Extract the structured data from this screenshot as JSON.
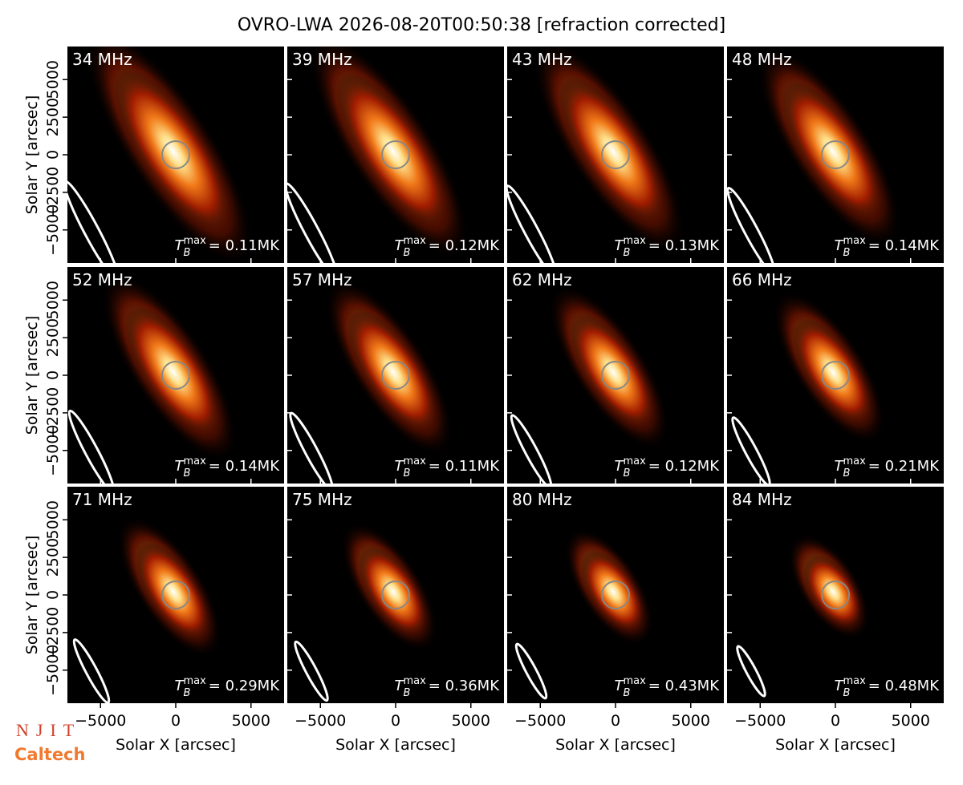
{
  "figure_title": "OVRO-LWA 2026-08-20T00:50:38 [refraction corrected]",
  "axes": {
    "xlabel": "Solar X [arcsec]",
    "ylabel": "Solar Y [arcsec]",
    "xlim": [
      -7200,
      7200
    ],
    "ylim": [
      -7200,
      7200
    ],
    "xticks": [
      {
        "value": -5000,
        "label": "−5000"
      },
      0,
      5000
    ],
    "yticks": [
      {
        "value": -5000,
        "label": "−5000"
      },
      {
        "value": -2500,
        "label": "−2500"
      },
      0,
      2500,
      5000
    ]
  },
  "annotation": {
    "symbol": "T",
    "sub": "B",
    "sup": "max"
  },
  "logos": [
    "NJIT",
    "Caltech"
  ],
  "chart_data": [
    {
      "type": "image",
      "title": "34 MHz",
      "annotation_text": "= 0.11MK"
    },
    {
      "type": "image",
      "title": "39 MHz",
      "annotation_text": "= 0.12MK"
    },
    {
      "type": "image",
      "title": "43 MHz",
      "annotation_text": "= 0.13MK"
    },
    {
      "type": "image",
      "title": "48 MHz",
      "annotation_text": "= 0.14MK"
    },
    {
      "type": "image",
      "title": "52 MHz",
      "annotation_text": "= 0.14MK"
    },
    {
      "type": "image",
      "title": "57 MHz",
      "annotation_text": "= 0.11MK"
    },
    {
      "type": "image",
      "title": "62 MHz",
      "annotation_text": "= 0.12MK"
    },
    {
      "type": "image",
      "title": "66 MHz",
      "annotation_text": "= 0.21MK"
    },
    {
      "type": "image",
      "title": "71 MHz",
      "annotation_text": "= 0.29MK"
    },
    {
      "type": "image",
      "title": "75 MHz",
      "annotation_text": "= 0.36MK"
    },
    {
      "type": "image",
      "title": "80 MHz",
      "annotation_text": "= 0.43MK"
    },
    {
      "type": "image",
      "title": "84 MHz",
      "annotation_text": "= 0.48MK"
    }
  ]
}
